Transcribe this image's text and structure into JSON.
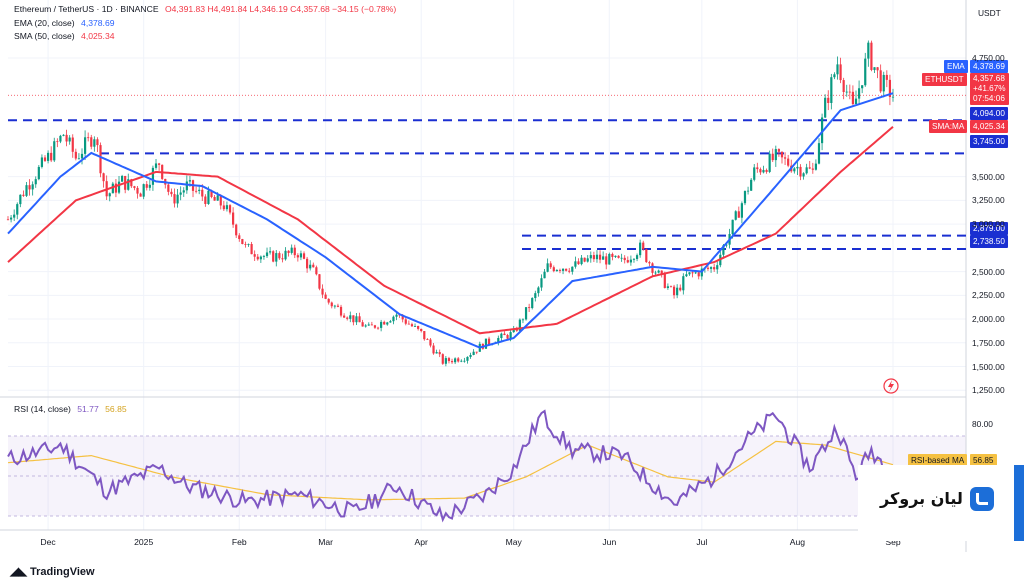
{
  "header": {
    "symbol_title": "Ethereum / TetherUS · 1D · BINANCE",
    "ohlc": "O4,391.83  H4,491.84  L4,346.19  C4,357.68  −34.15 (−0.78%)",
    "ema_label": "EMA (20, close)",
    "ema_value": "4,378.69",
    "sma_label": "SMA (50, close)",
    "sma_value": "4,025.34",
    "currency": "USDT"
  },
  "rsi_header": {
    "label": "RSI (14, close)",
    "rsi_value": "51.77",
    "ma_value": "56.85"
  },
  "price_tags": {
    "ema_tag_name": "EMA",
    "ema_tag_value": "4,378.69",
    "last_name": "ETHUSDT",
    "last_value": "4,357.68",
    "last_change": "+41.67%",
    "countdown": "07:54:06",
    "level_1": "4,094.00",
    "sma_tag_name": "SMA:MA",
    "sma_tag_value": "4,025.34",
    "level_2": "3,745.00",
    "level_3": "2,879.00",
    "level_4": "2,738.50"
  },
  "rsi_tag": {
    "name": "RSI-based MA",
    "value": "56.85"
  },
  "broker": {
    "name": "لیان بروکر"
  },
  "footer": {
    "brand": "TradingView"
  },
  "colors": {
    "up": "#089981",
    "down": "#f23645",
    "ema": "#2962ff",
    "sma": "#f23645",
    "level": "#1a2fd1",
    "rsi": "#7e57c2",
    "rsi_ma": "#f5c142"
  },
  "chart_data": [
    {
      "type": "line",
      "title": "Ethereum / TetherUS · 1D · BINANCE",
      "note_candles": "daily candlesticks approximated from a smoothed close path",
      "x_labels": [
        "Dec",
        "2025",
        "Feb",
        "Mar",
        "Apr",
        "May",
        "Jun",
        "Jul",
        "Aug",
        "Sep"
      ],
      "y_ticks": [
        "4,750.00",
        "3,500.00",
        "3,250.00",
        "3,000.00",
        "2,500.00",
        "2,250.00",
        "2,000.00",
        "1,750.00",
        "1,500.00",
        "1,250.00"
      ],
      "ylim": [
        1200,
        5150
      ],
      "close_anchors": [
        [
          "2024-11-18",
          3050
        ],
        [
          "2024-11-24",
          3400
        ],
        [
          "2024-12-01",
          3700
        ],
        [
          "2024-12-06",
          3950
        ],
        [
          "2024-12-10",
          3700
        ],
        [
          "2024-12-16",
          3950
        ],
        [
          "2024-12-20",
          3300
        ],
        [
          "2024-12-25",
          3450
        ],
        [
          "2024-12-31",
          3350
        ],
        [
          "2025-01-06",
          3650
        ],
        [
          "2025-01-10",
          3250
        ],
        [
          "2025-01-15",
          3400
        ],
        [
          "2025-01-20",
          3300
        ],
        [
          "2025-01-27",
          3200
        ],
        [
          "2025-02-03",
          2750
        ],
        [
          "2025-02-10",
          2650
        ],
        [
          "2025-02-20",
          2700
        ],
        [
          "2025-02-25",
          2500
        ],
        [
          "2025-03-01",
          2200
        ],
        [
          "2025-03-10",
          2000
        ],
        [
          "2025-03-15",
          1900
        ],
        [
          "2025-03-24",
          2050
        ],
        [
          "2025-04-01",
          1850
        ],
        [
          "2025-04-08",
          1550
        ],
        [
          "2025-04-15",
          1600
        ],
        [
          "2025-04-22",
          1750
        ],
        [
          "2025-05-01",
          1850
        ],
        [
          "2025-05-08",
          2250
        ],
        [
          "2025-05-12",
          2550
        ],
        [
          "2025-05-20",
          2550
        ],
        [
          "2025-05-27",
          2650
        ],
        [
          "2025-06-05",
          2600
        ],
        [
          "2025-06-11",
          2750
        ],
        [
          "2025-06-15",
          2550
        ],
        [
          "2025-06-22",
          2250
        ],
        [
          "2025-06-26",
          2450
        ],
        [
          "2025-07-05",
          2550
        ],
        [
          "2025-07-10",
          2900
        ],
        [
          "2025-07-18",
          3550
        ],
        [
          "2025-07-25",
          3700
        ],
        [
          "2025-08-01",
          3600
        ],
        [
          "2025-08-06",
          3550
        ],
        [
          "2025-08-10",
          4250
        ],
        [
          "2025-08-14",
          4700
        ],
        [
          "2025-08-19",
          4200
        ],
        [
          "2025-08-24",
          4800
        ],
        [
          "2025-08-28",
          4500
        ],
        [
          "2025-09-01",
          4357.68
        ]
      ],
      "series": [
        {
          "name": "EMA (20, close)",
          "last": 4378.69,
          "points": [
            [
              "2024-11-18",
              2900
            ],
            [
              "2024-12-05",
              3500
            ],
            [
              "2024-12-15",
              3750
            ],
            [
              "2025-01-05",
              3450
            ],
            [
              "2025-01-20",
              3400
            ],
            [
              "2025-02-10",
              3050
            ],
            [
              "2025-03-01",
              2650
            ],
            [
              "2025-03-25",
              2050
            ],
            [
              "2025-04-20",
              1700
            ],
            [
              "2025-05-01",
              1800
            ],
            [
              "2025-05-20",
              2400
            ],
            [
              "2025-06-15",
              2550
            ],
            [
              "2025-07-01",
              2500
            ],
            [
              "2025-07-25",
              3400
            ],
            [
              "2025-08-15",
              4200
            ],
            [
              "2025-09-01",
              4378.69
            ]
          ]
        },
        {
          "name": "SMA (50, close)",
          "last": 4025.34,
          "points": [
            [
              "2024-11-18",
              2600
            ],
            [
              "2024-12-10",
              3250
            ],
            [
              "2025-01-05",
              3550
            ],
            [
              "2025-01-25",
              3500
            ],
            [
              "2025-02-20",
              3050
            ],
            [
              "2025-03-20",
              2350
            ],
            [
              "2025-04-20",
              1850
            ],
            [
              "2025-05-15",
              1950
            ],
            [
              "2025-06-15",
              2450
            ],
            [
              "2025-07-05",
              2600
            ],
            [
              "2025-07-25",
              2900
            ],
            [
              "2025-08-15",
              3550
            ],
            [
              "2025-09-01",
              4025.34
            ]
          ]
        }
      ],
      "horizontal_levels": [
        4094.0,
        3745.0,
        2879.0,
        2738.5
      ],
      "last_price": 4357.68
    },
    {
      "type": "line",
      "title": "RSI (14, close)",
      "y_ticks": [
        "80.00"
      ],
      "ylim": [
        20,
        90
      ],
      "band": [
        30,
        70
      ],
      "series": [
        {
          "name": "RSI (14, close)",
          "last": 51.77,
          "points": [
            [
              "2024-11-18",
              60
            ],
            [
              "2024-12-01",
              65
            ],
            [
              "2024-12-05",
              68
            ],
            [
              "2024-12-20",
              42
            ],
            [
              "2025-01-06",
              55
            ],
            [
              "2025-01-15",
              45
            ],
            [
              "2025-02-03",
              36
            ],
            [
              "2025-02-20",
              40
            ],
            [
              "2025-03-10",
              30
            ],
            [
              "2025-03-24",
              45
            ],
            [
              "2025-04-08",
              27
            ],
            [
              "2025-04-22",
              40
            ],
            [
              "2025-05-01",
              55
            ],
            [
              "2025-05-10",
              85
            ],
            [
              "2025-05-20",
              65
            ],
            [
              "2025-06-05",
              62
            ],
            [
              "2025-06-22",
              35
            ],
            [
              "2025-07-05",
              50
            ],
            [
              "2025-07-15",
              70
            ],
            [
              "2025-07-25",
              85
            ],
            [
              "2025-08-05",
              55
            ],
            [
              "2025-08-14",
              78
            ],
            [
              "2025-08-20",
              50
            ],
            [
              "2025-08-25",
              65
            ],
            [
              "2025-09-01",
              51.77
            ]
          ]
        },
        {
          "name": "RSI-based MA",
          "last": 56.85,
          "points": [
            [
              "2024-11-18",
              58
            ],
            [
              "2024-12-15",
              62
            ],
            [
              "2025-01-10",
              50
            ],
            [
              "2025-02-10",
              40
            ],
            [
              "2025-03-15",
              37
            ],
            [
              "2025-04-15",
              38
            ],
            [
              "2025-05-05",
              50
            ],
            [
              "2025-05-25",
              68
            ],
            [
              "2025-06-20",
              50
            ],
            [
              "2025-07-05",
              47
            ],
            [
              "2025-07-25",
              70
            ],
            [
              "2025-08-10",
              68
            ],
            [
              "2025-09-01",
              56.85
            ]
          ]
        }
      ]
    }
  ]
}
